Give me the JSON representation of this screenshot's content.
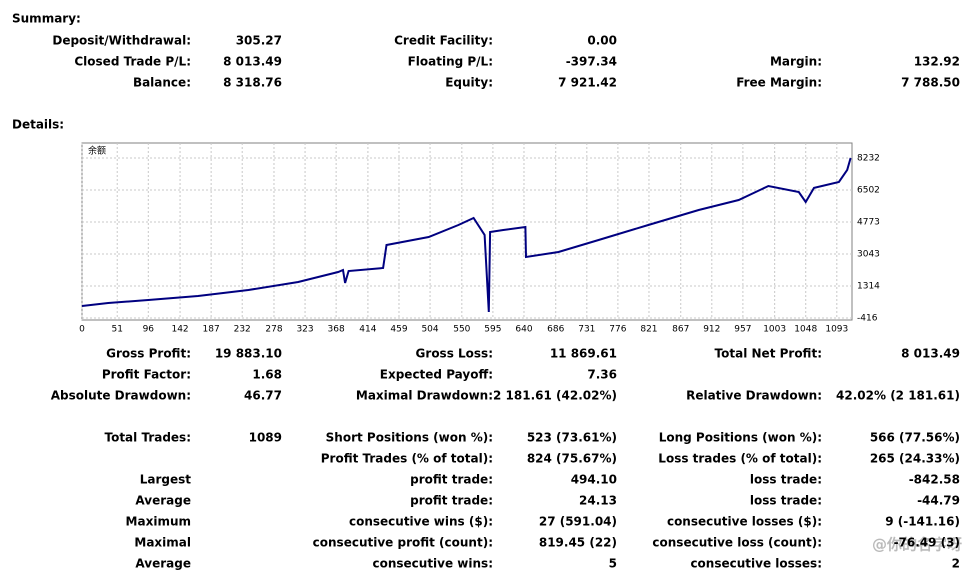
{
  "summary": {
    "title": "Summary:",
    "rows": [
      [
        "Deposit/Withdrawal:",
        "305.27",
        "Credit Facility:",
        "0.00",
        null,
        null
      ],
      [
        "Closed Trade P/L:",
        "8 013.49",
        "Floating P/L:",
        "-397.34",
        "Margin:",
        "132.92"
      ],
      [
        "Balance:",
        "8 318.76",
        "Equity:",
        "7 921.42",
        "Free Margin:",
        "7 788.50"
      ]
    ]
  },
  "details": {
    "title": "Details:",
    "rows": [
      [
        "Gross Profit:",
        "19 883.10",
        "Gross Loss:",
        "11 869.61",
        "Total Net Profit:",
        "8 013.49"
      ],
      [
        "Profit Factor:",
        "1.68",
        "Expected Payoff:",
        "7.36",
        null,
        null
      ],
      [
        "Absolute Drawdown:",
        "46.77",
        "Maximal Drawdown:",
        "2 181.61 (42.02%)",
        "Relative Drawdown:",
        "42.02% (2 181.61)"
      ],
      [
        "Total Trades:",
        "1089",
        "Short Positions (won %):",
        "523 (73.61%)",
        "Long Positions (won %):",
        "566 (77.56%)"
      ],
      [
        null,
        null,
        "Profit Trades (% of total):",
        "824 (75.67%)",
        "Loss trades (% of total):",
        "265 (24.33%)"
      ],
      [
        "Largest",
        null,
        "profit trade:",
        "494.10",
        "loss trade:",
        "-842.58"
      ],
      [
        "Average",
        null,
        "profit trade:",
        "24.13",
        "loss trade:",
        "-44.79"
      ],
      [
        "Maximum",
        null,
        "consecutive wins ($):",
        "27 (591.04)",
        "consecutive losses ($):",
        "9 (-141.16)"
      ],
      [
        "Maximal",
        null,
        "consecutive profit (count):",
        "819.45 (22)",
        "consecutive loss (count):",
        "-76.49 (3)"
      ],
      [
        "Average",
        null,
        "consecutive wins:",
        "5",
        "consecutive losses:",
        "2"
      ]
    ]
  },
  "watermark": "@你的名字呀",
  "chart_data": {
    "type": "line",
    "title": "余额",
    "x": [
      0,
      38,
      96,
      168,
      241,
      313,
      371,
      378,
      381,
      386,
      436,
      441,
      502,
      545,
      567,
      583,
      589,
      591,
      610,
      642,
      643,
      690,
      748,
      820,
      893,
      951,
      994,
      1038,
      1048,
      1060,
      1096,
      1108,
      1113
    ],
    "y": [
      233,
      395,
      557,
      773,
      1098,
      1530,
      2070,
      2178,
      1476,
      2124,
      2287,
      3530,
      3962,
      4610,
      4989,
      4070,
      -92,
      4232,
      4340,
      4502,
      2881,
      3151,
      3800,
      4610,
      5421,
      5962,
      6719,
      6394,
      5854,
      6611,
      6935,
      7584,
      8232
    ],
    "color": "#000080",
    "xlim": [
      0,
      1115
    ],
    "ylim": [
      -525,
      9040
    ],
    "xticks": [
      0,
      51,
      96,
      142,
      187,
      232,
      278,
      323,
      368,
      414,
      459,
      504,
      550,
      595,
      640,
      686,
      731,
      776,
      821,
      867,
      912,
      957,
      1003,
      1048,
      1093
    ],
    "yticks": [
      -416,
      1314,
      3043,
      4773,
      6502,
      8232
    ],
    "grid": true
  }
}
